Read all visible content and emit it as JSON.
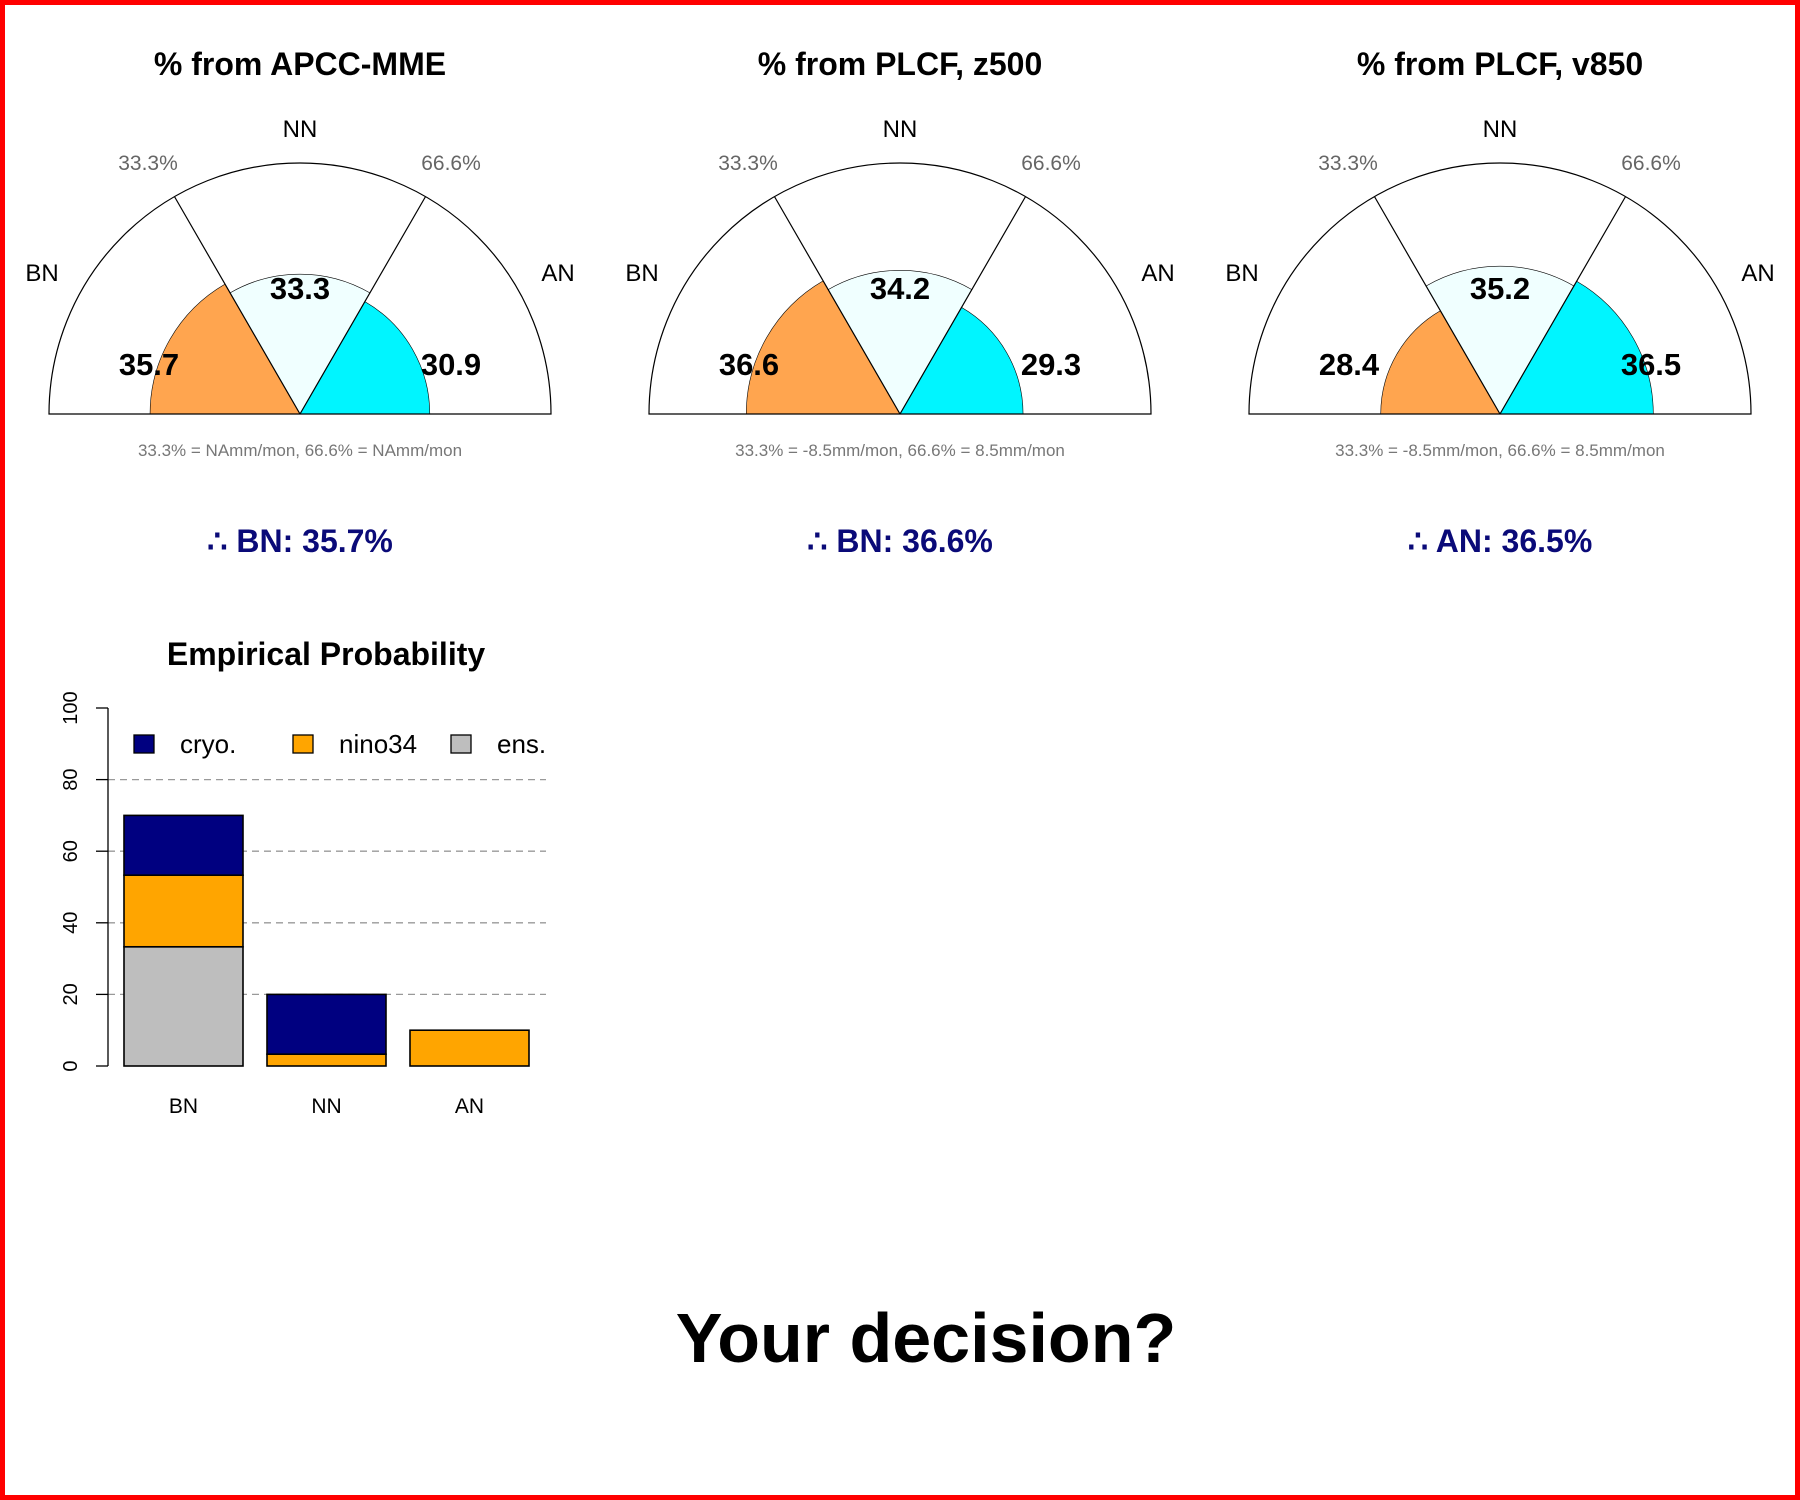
{
  "colors": {
    "bn": "#ffa54f",
    "nn": "#f0ffff",
    "an": "#00f5ff",
    "cryo": "#000080",
    "nino34": "#ffa500",
    "ens": "#bebebe",
    "conclusion": "#0a0a78"
  },
  "gauges": [
    {
      "title": "% from APCC-MME",
      "labels": {
        "bn": "BN",
        "nn": "NN",
        "an": "AN",
        "p33": "33.3%",
        "p66": "66.6%"
      },
      "values": {
        "bn": 35.7,
        "nn": 33.3,
        "an": 30.9
      },
      "value_labels": {
        "bn": "35.7",
        "nn": "33.3",
        "an": "30.9"
      },
      "thresholds_note": "33.3% = NAmm/mon,  66.6% = NAmm/mon",
      "conclusion": "∴ BN: 35.7%"
    },
    {
      "title": "% from PLCF, z500",
      "labels": {
        "bn": "BN",
        "nn": "NN",
        "an": "AN",
        "p33": "33.3%",
        "p66": "66.6%"
      },
      "values": {
        "bn": 36.6,
        "nn": 34.2,
        "an": 29.3
      },
      "value_labels": {
        "bn": "36.6",
        "nn": "34.2",
        "an": "29.3"
      },
      "thresholds_note": "33.3% = -8.5mm/mon,  66.6% = 8.5mm/mon",
      "conclusion": "∴ BN: 36.6%"
    },
    {
      "title": "% from PLCF, v850",
      "labels": {
        "bn": "BN",
        "nn": "NN",
        "an": "AN",
        "p33": "33.3%",
        "p66": "66.6%"
      },
      "values": {
        "bn": 28.4,
        "nn": 35.2,
        "an": 36.5
      },
      "value_labels": {
        "bn": "28.4",
        "nn": "35.2",
        "an": "36.5"
      },
      "thresholds_note": "33.3% = -8.5mm/mon,  66.6% = 8.5mm/mon",
      "conclusion": "∴ AN: 36.5%"
    }
  ],
  "chart_data": {
    "type": "bar",
    "title": "Empirical Probability",
    "categories": [
      "BN",
      "NN",
      "AN"
    ],
    "stacked": true,
    "series": [
      {
        "name": "ens.",
        "values": [
          33.3,
          0,
          0
        ]
      },
      {
        "name": "nino34",
        "values": [
          20,
          3.3,
          10
        ]
      },
      {
        "name": "cryo.",
        "values": [
          16.7,
          16.7,
          0
        ]
      }
    ],
    "legend_order": [
      "cryo.",
      "nino34",
      "ens."
    ],
    "ylim": [
      0,
      100
    ],
    "yticks": [
      "0",
      "20",
      "40",
      "60",
      "80",
      "100"
    ],
    "grid": "horizontal dashed",
    "legend_position": "top"
  },
  "prompt": "Your decision?"
}
